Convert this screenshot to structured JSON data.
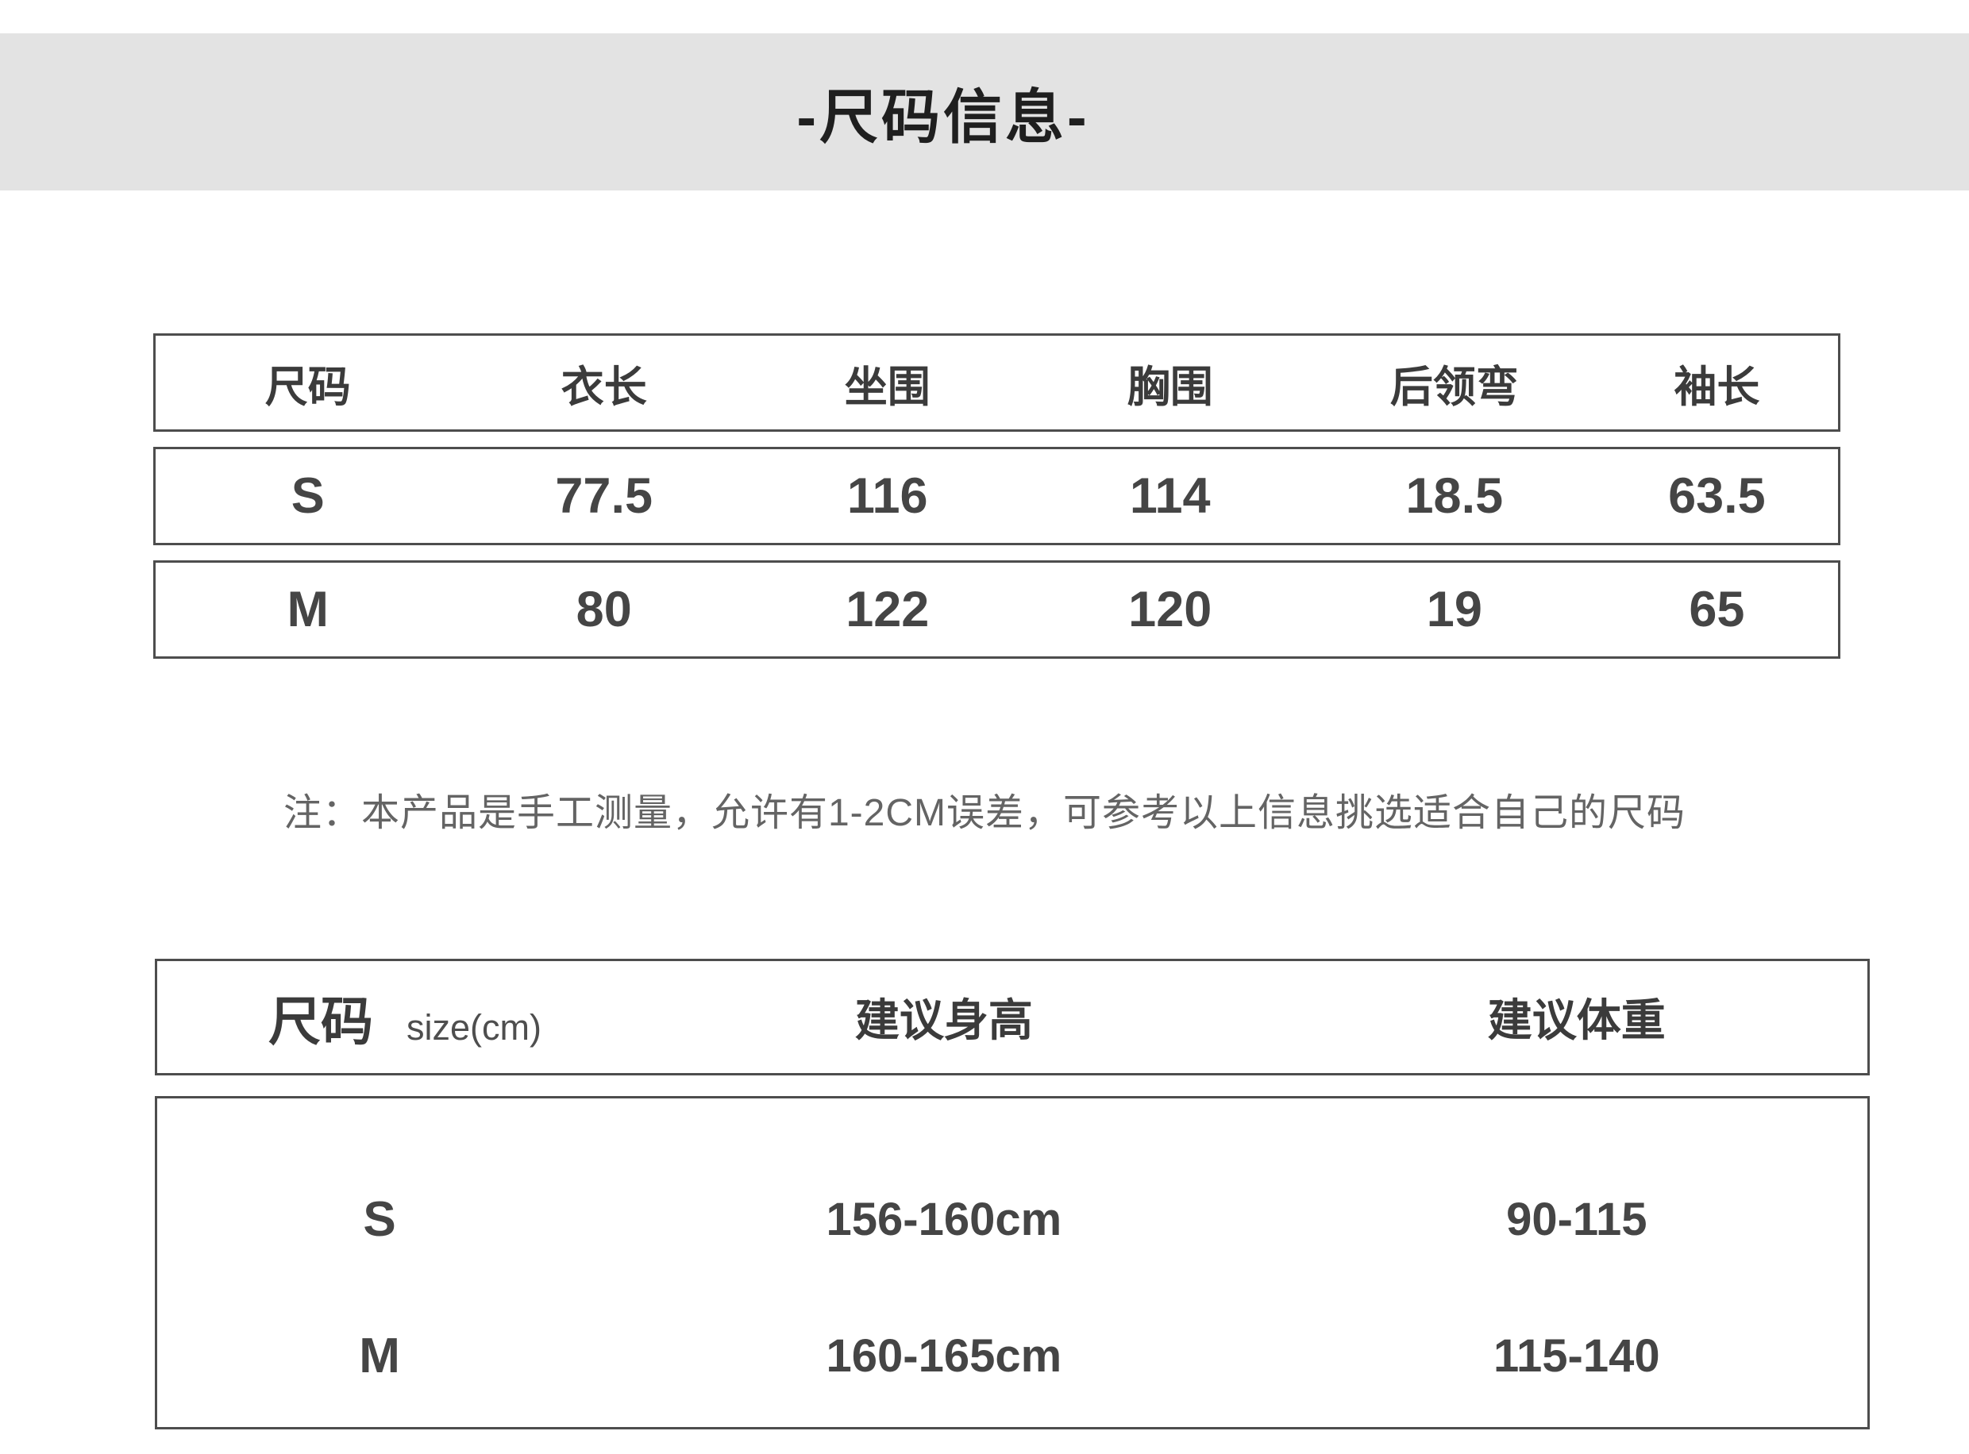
{
  "header": {
    "title": "-尺码信息-"
  },
  "measurement_table": {
    "columns": [
      "尺码",
      "衣长",
      "坐围",
      "胸围",
      "后领弯",
      "袖长"
    ],
    "rows": [
      [
        "S",
        "77.5",
        "116",
        "114",
        "18.5",
        "63.5"
      ],
      [
        "M",
        "80",
        "122",
        "120",
        "19",
        "65"
      ]
    ]
  },
  "note": "注：本产品是手工测量，允许有1-2CM误差，可参考以上信息挑选适合自己的尺码",
  "size_table": {
    "header": {
      "size_label": "尺码",
      "unit_label": "size(cm)",
      "height_label": "建议身高",
      "weight_label": "建议体重"
    },
    "rows": [
      [
        "S",
        "156-160cm",
        "90-115"
      ],
      [
        "M",
        "160-165cm",
        "115-140"
      ]
    ]
  },
  "colors": {
    "banner_bg": "#e3e3e3",
    "table_border": "#4d4d4d",
    "table_text": "#454545",
    "note_text": "#646464",
    "title_text": "#1f1f1f"
  }
}
